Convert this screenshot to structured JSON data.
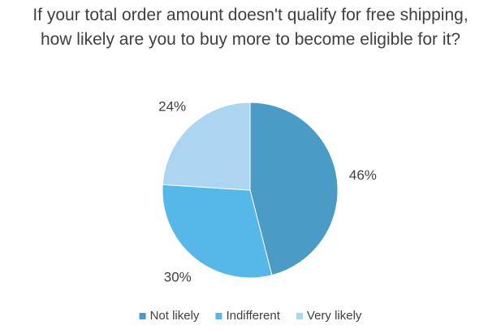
{
  "chart_data": {
    "type": "pie",
    "title": "If your total order amount doesn't qualify for free shipping, how likely are you to buy more to become eligible for it?",
    "categories": [
      "Not likely",
      "Indifferent",
      "Very likely"
    ],
    "values": [
      46,
      30,
      24
    ],
    "value_labels": [
      "46%",
      "30%",
      "24%"
    ],
    "colors": [
      "#4a9cc6",
      "#55b8e9",
      "#abd5f1"
    ],
    "legend": "bottom"
  }
}
